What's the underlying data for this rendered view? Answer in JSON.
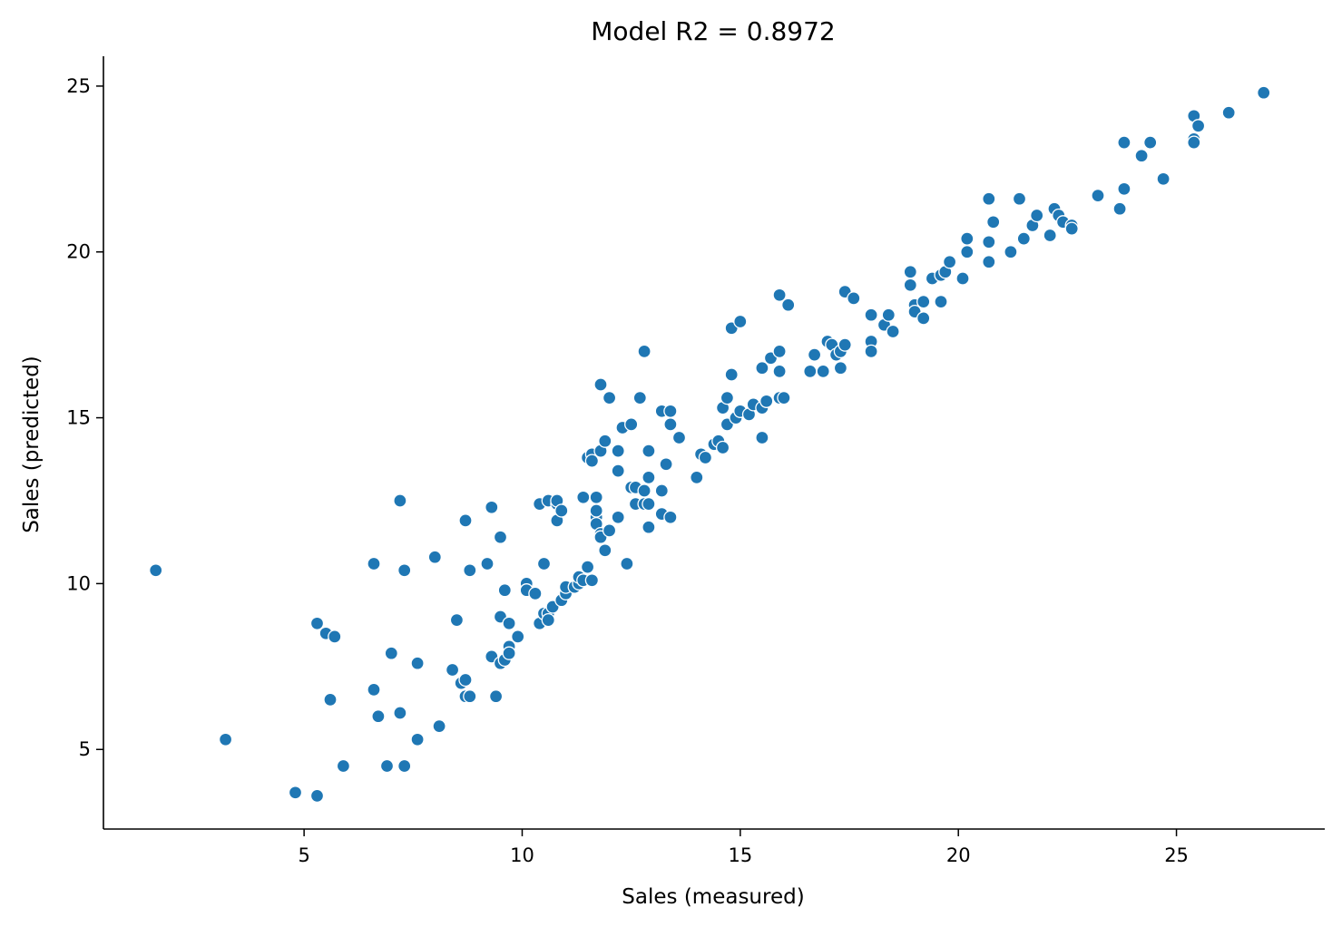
{
  "chart_data": {
    "type": "scatter",
    "title": "Model R2 = 0.8972",
    "xlabel": "Sales (measured)",
    "ylabel": "Sales (predicted)",
    "xlim": [
      0.4,
      28.4
    ],
    "ylim": [
      2.6,
      25.9
    ],
    "xticks": [
      5,
      10,
      15,
      20,
      25
    ],
    "yticks": [
      5,
      10,
      15,
      20,
      25
    ],
    "grid": false,
    "legend": "none",
    "point_color": "#1f77b4",
    "points": [
      [
        1.6,
        10.4
      ],
      [
        3.2,
        5.3
      ],
      [
        4.8,
        3.7
      ],
      [
        5.3,
        3.6
      ],
      [
        5.3,
        8.8
      ],
      [
        5.5,
        8.5
      ],
      [
        5.6,
        6.5
      ],
      [
        5.7,
        8.4
      ],
      [
        5.9,
        4.5
      ],
      [
        6.6,
        10.6
      ],
      [
        6.6,
        6.8
      ],
      [
        6.7,
        6.0
      ],
      [
        6.9,
        4.5
      ],
      [
        7.0,
        7.9
      ],
      [
        7.2,
        12.5
      ],
      [
        7.2,
        6.1
      ],
      [
        7.3,
        10.4
      ],
      [
        7.3,
        4.5
      ],
      [
        7.6,
        7.6
      ],
      [
        7.6,
        5.3
      ],
      [
        8.0,
        10.8
      ],
      [
        8.1,
        5.7
      ],
      [
        8.4,
        7.4
      ],
      [
        8.5,
        8.9
      ],
      [
        8.6,
        7.0
      ],
      [
        8.7,
        11.9
      ],
      [
        8.7,
        7.1
      ],
      [
        8.7,
        6.6
      ],
      [
        8.8,
        10.4
      ],
      [
        8.8,
        6.6
      ],
      [
        9.2,
        10.6
      ],
      [
        9.3,
        12.3
      ],
      [
        9.3,
        7.8
      ],
      [
        9.4,
        6.6
      ],
      [
        9.5,
        11.4
      ],
      [
        9.5,
        9.0
      ],
      [
        9.5,
        7.6
      ],
      [
        9.6,
        9.8
      ],
      [
        9.6,
        7.7
      ],
      [
        9.7,
        8.8
      ],
      [
        9.7,
        8.1
      ],
      [
        9.7,
        7.9
      ],
      [
        9.9,
        8.4
      ],
      [
        10.1,
        10.0
      ],
      [
        10.1,
        9.8
      ],
      [
        10.3,
        9.7
      ],
      [
        10.4,
        12.4
      ],
      [
        10.4,
        8.8
      ],
      [
        10.5,
        10.6
      ],
      [
        10.5,
        9.1
      ],
      [
        10.6,
        12.5
      ],
      [
        10.6,
        9.1
      ],
      [
        10.6,
        8.9
      ],
      [
        10.7,
        9.3
      ],
      [
        10.8,
        12.4
      ],
      [
        10.8,
        11.9
      ],
      [
        10.8,
        12.5
      ],
      [
        10.9,
        12.2
      ],
      [
        10.9,
        9.5
      ],
      [
        11.0,
        9.7
      ],
      [
        11.0,
        9.9
      ],
      [
        11.2,
        9.9
      ],
      [
        11.3,
        10.0
      ],
      [
        11.3,
        10.2
      ],
      [
        11.4,
        12.6
      ],
      [
        11.4,
        10.1
      ],
      [
        11.5,
        13.8
      ],
      [
        11.5,
        10.5
      ],
      [
        11.6,
        13.9
      ],
      [
        11.6,
        13.7
      ],
      [
        11.6,
        10.1
      ],
      [
        11.7,
        12.6
      ],
      [
        11.7,
        12.0
      ],
      [
        11.7,
        11.8
      ],
      [
        11.7,
        12.2
      ],
      [
        11.8,
        16.0
      ],
      [
        11.8,
        14.0
      ],
      [
        11.8,
        11.5
      ],
      [
        11.8,
        11.4
      ],
      [
        11.9,
        14.3
      ],
      [
        11.9,
        11.0
      ],
      [
        12.0,
        15.6
      ],
      [
        12.0,
        11.6
      ],
      [
        12.2,
        14.0
      ],
      [
        12.2,
        13.4
      ],
      [
        12.2,
        12.0
      ],
      [
        12.3,
        14.7
      ],
      [
        12.4,
        10.6
      ],
      [
        12.5,
        14.8
      ],
      [
        12.5,
        12.9
      ],
      [
        12.6,
        12.9
      ],
      [
        12.6,
        12.4
      ],
      [
        12.7,
        15.6
      ],
      [
        12.8,
        17.0
      ],
      [
        12.8,
        12.8
      ],
      [
        12.8,
        12.4
      ],
      [
        12.9,
        14.0
      ],
      [
        12.9,
        13.2
      ],
      [
        12.9,
        12.4
      ],
      [
        12.9,
        11.7
      ],
      [
        13.2,
        15.2
      ],
      [
        13.2,
        12.8
      ],
      [
        13.2,
        12.1
      ],
      [
        13.3,
        13.6
      ],
      [
        13.4,
        15.2
      ],
      [
        13.4,
        14.8
      ],
      [
        13.4,
        12.0
      ],
      [
        13.6,
        14.4
      ],
      [
        14.0,
        13.2
      ],
      [
        14.1,
        13.9
      ],
      [
        14.2,
        13.8
      ],
      [
        14.4,
        14.2
      ],
      [
        14.5,
        14.3
      ],
      [
        14.6,
        14.1
      ],
      [
        14.6,
        15.3
      ],
      [
        14.7,
        15.6
      ],
      [
        14.7,
        14.8
      ],
      [
        14.8,
        17.7
      ],
      [
        14.8,
        16.3
      ],
      [
        14.9,
        15.0
      ],
      [
        15.0,
        17.9
      ],
      [
        15.0,
        15.2
      ],
      [
        15.2,
        15.1
      ],
      [
        15.3,
        15.4
      ],
      [
        15.5,
        16.5
      ],
      [
        15.5,
        15.3
      ],
      [
        15.5,
        14.4
      ],
      [
        15.6,
        15.5
      ],
      [
        15.7,
        16.8
      ],
      [
        15.9,
        18.7
      ],
      [
        15.9,
        17.0
      ],
      [
        15.9,
        16.4
      ],
      [
        15.9,
        15.6
      ],
      [
        16.0,
        15.6
      ],
      [
        16.1,
        18.4
      ],
      [
        16.6,
        16.4
      ],
      [
        16.7,
        16.9
      ],
      [
        16.9,
        16.4
      ],
      [
        17.0,
        17.3
      ],
      [
        17.1,
        17.2
      ],
      [
        17.2,
        16.9
      ],
      [
        17.3,
        17.0
      ],
      [
        17.3,
        16.5
      ],
      [
        17.4,
        18.8
      ],
      [
        17.4,
        17.2
      ],
      [
        17.6,
        18.6
      ],
      [
        18.0,
        18.1
      ],
      [
        18.0,
        17.3
      ],
      [
        18.0,
        17.0
      ],
      [
        18.3,
        17.8
      ],
      [
        18.4,
        18.1
      ],
      [
        18.5,
        17.6
      ],
      [
        18.9,
        19.4
      ],
      [
        18.9,
        19.0
      ],
      [
        19.0,
        18.4
      ],
      [
        19.0,
        18.2
      ],
      [
        19.2,
        18.5
      ],
      [
        19.2,
        18.0
      ],
      [
        19.4,
        19.2
      ],
      [
        19.6,
        19.3
      ],
      [
        19.6,
        18.5
      ],
      [
        19.7,
        19.4
      ],
      [
        19.8,
        19.7
      ],
      [
        20.1,
        19.2
      ],
      [
        20.2,
        20.4
      ],
      [
        20.2,
        20.0
      ],
      [
        20.7,
        21.6
      ],
      [
        20.7,
        20.3
      ],
      [
        20.7,
        19.7
      ],
      [
        20.8,
        20.9
      ],
      [
        21.2,
        20.0
      ],
      [
        21.4,
        21.6
      ],
      [
        21.5,
        20.4
      ],
      [
        21.7,
        20.8
      ],
      [
        21.8,
        21.1
      ],
      [
        22.1,
        20.5
      ],
      [
        22.2,
        21.3
      ],
      [
        22.3,
        21.1
      ],
      [
        22.4,
        20.9
      ],
      [
        22.6,
        20.8
      ],
      [
        22.6,
        20.7
      ],
      [
        23.2,
        21.7
      ],
      [
        23.7,
        21.3
      ],
      [
        23.8,
        23.3
      ],
      [
        23.8,
        21.9
      ],
      [
        24.2,
        22.9
      ],
      [
        24.4,
        23.3
      ],
      [
        24.7,
        22.2
      ],
      [
        25.4,
        24.1
      ],
      [
        25.4,
        23.4
      ],
      [
        25.4,
        23.3
      ],
      [
        25.5,
        23.8
      ],
      [
        26.2,
        24.2
      ],
      [
        27.0,
        24.8
      ]
    ]
  }
}
